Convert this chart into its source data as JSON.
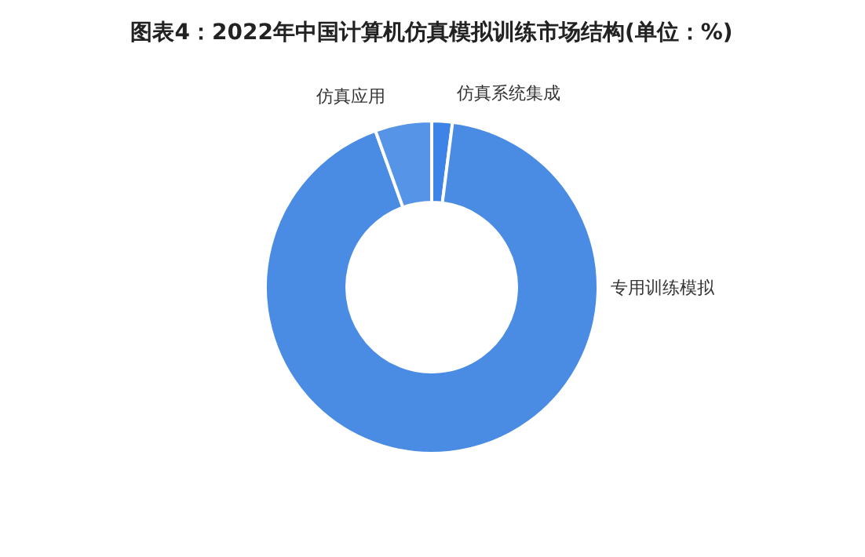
{
  "chart_data": {
    "type": "donut",
    "title": "图表4：2022年中国计算机仿真模拟训练市场结构(单位：%)",
    "categories": [
      "仿真系统集成",
      "专用训练模拟",
      "仿真应用"
    ],
    "values": [
      2,
      92.5,
      5.5
    ],
    "colors": [
      "#3d84e6",
      "#4a8be3",
      "#5594e6"
    ]
  }
}
